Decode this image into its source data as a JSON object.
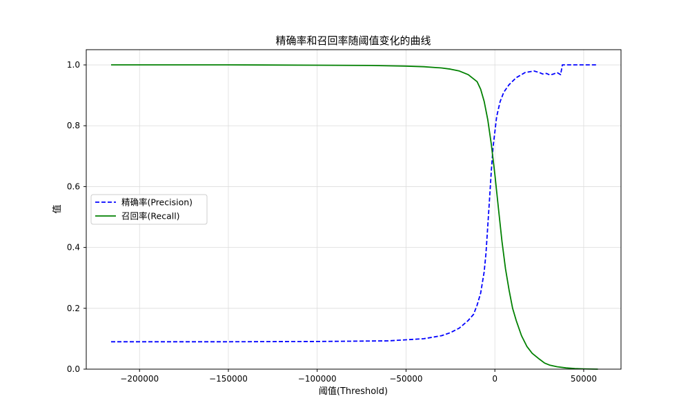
{
  "chart_data": {
    "type": "line",
    "title": "精确率和召回率随阈值变化的曲线",
    "xlabel": "阈值(Threshold)",
    "ylabel": "值",
    "xlim": [
      -230000,
      71000
    ],
    "ylim": [
      0.0,
      1.05
    ],
    "xticks": [
      -200000,
      -150000,
      -100000,
      -50000,
      0,
      50000
    ],
    "xtick_labels": [
      "−200000",
      "−150000",
      "−100000",
      "−50000",
      "0",
      "50000"
    ],
    "yticks": [
      0.0,
      0.2,
      0.4,
      0.6,
      0.8,
      1.0
    ],
    "ytick_labels": [
      "0.0",
      "0.2",
      "0.4",
      "0.6",
      "0.8",
      "1.0"
    ],
    "grid": true,
    "legend_position": "center-left",
    "series": [
      {
        "name": "精确率(Precision)",
        "color": "#0000ff",
        "dash": "dashed",
        "x": [
          -216000,
          -150000,
          -100000,
          -60000,
          -40000,
          -30000,
          -25000,
          -20000,
          -15000,
          -12000,
          -10000,
          -8000,
          -6000,
          -5000,
          -4000,
          -3000,
          -2000,
          -1000,
          0,
          1000,
          2000,
          3000,
          5000,
          8000,
          12000,
          17000,
          22000,
          25000,
          27000,
          29000,
          31000,
          33000,
          35000,
          37000,
          38000,
          40000,
          58000
        ],
        "y": [
          0.09,
          0.09,
          0.091,
          0.093,
          0.1,
          0.11,
          0.12,
          0.135,
          0.16,
          0.18,
          0.21,
          0.25,
          0.32,
          0.38,
          0.47,
          0.56,
          0.65,
          0.73,
          0.78,
          0.83,
          0.855,
          0.88,
          0.91,
          0.935,
          0.958,
          0.975,
          0.98,
          0.975,
          0.97,
          0.972,
          0.967,
          0.97,
          0.975,
          0.968,
          1.0,
          1.0,
          1.0
        ]
      },
      {
        "name": "召回率(Recall)",
        "color": "#008000",
        "dash": "solid",
        "x": [
          -216000,
          -150000,
          -100000,
          -70000,
          -60000,
          -50000,
          -40000,
          -30000,
          -25000,
          -20000,
          -15000,
          -10000,
          -8000,
          -6000,
          -4000,
          -2000,
          0,
          2000,
          4000,
          6000,
          8000,
          10000,
          12000,
          15000,
          18000,
          21000,
          25000,
          28000,
          31000,
          35000,
          40000,
          45000,
          50000,
          58000
        ],
        "y": [
          1.0,
          1.0,
          0.999,
          0.998,
          0.997,
          0.996,
          0.994,
          0.99,
          0.986,
          0.98,
          0.968,
          0.945,
          0.92,
          0.88,
          0.82,
          0.74,
          0.64,
          0.53,
          0.42,
          0.33,
          0.26,
          0.2,
          0.16,
          0.11,
          0.075,
          0.052,
          0.033,
          0.02,
          0.013,
          0.008,
          0.004,
          0.002,
          0.001,
          0.0
        ]
      }
    ]
  }
}
